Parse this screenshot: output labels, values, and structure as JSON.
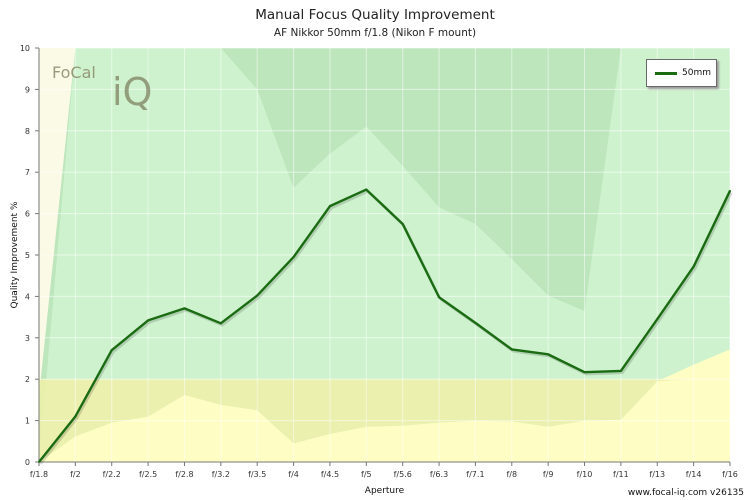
{
  "chart_data": {
    "type": "line",
    "title": "Manual Focus Quality Improvement",
    "subtitle": "AF Nikkor 50mm f/1.8 (Nikon F mount)",
    "xlabel": "Aperture",
    "ylabel": "Quality Improvement %",
    "categories": [
      "f/1.8",
      "f/2",
      "f/2.2",
      "f/2.5",
      "f/2.8",
      "f/3.2",
      "f/3.5",
      "f/4",
      "f/4.5",
      "f/5",
      "f/5.6",
      "f/6.3",
      "f/7.1",
      "f/8",
      "f/9",
      "f/10",
      "f/11",
      "f/13",
      "f/14",
      "f/16"
    ],
    "yticks": [
      0,
      1,
      2,
      3,
      4,
      5,
      6,
      7,
      8,
      9,
      10
    ],
    "ylim": [
      0,
      10
    ],
    "grid": true,
    "legend_position": "top-right",
    "series": [
      {
        "name": "50mm",
        "color": "#1a6b12",
        "values": [
          0,
          1.1,
          2.7,
          3.42,
          3.71,
          3.35,
          4.02,
          4.95,
          6.18,
          6.58,
          5.75,
          3.98,
          3.36,
          2.72,
          2.6,
          2.17,
          2.2,
          3.45,
          4.72,
          6.55
        ]
      }
    ],
    "bands": {
      "outer_upper": [
        1.6,
        10,
        10,
        10,
        10,
        10,
        10,
        10,
        10,
        10,
        10,
        10,
        10,
        10,
        10,
        10,
        10,
        10,
        10,
        10
      ],
      "inner_upper": [
        0,
        10,
        10,
        10,
        10,
        10,
        9.0,
        6.62,
        7.45,
        8.1,
        7.15,
        6.15,
        5.75,
        4.9,
        4.02,
        3.65,
        10,
        10,
        10,
        10
      ],
      "lower": [
        0,
        0.62,
        0.95,
        1.1,
        1.62,
        1.38,
        1.25,
        0.45,
        0.68,
        0.85,
        0.88,
        0.95,
        1.0,
        0.98,
        0.85,
        1.0,
        1.02,
        1.95,
        2.35,
        2.72
      ],
      "threshold": 2
    },
    "colors": {
      "outer_band": "#bde6bd",
      "inner_band": "#cef2ce",
      "lower_band": "#fefec4",
      "threshold_zone": "#f0f0a8",
      "plot_bg": "#fafae6"
    }
  },
  "watermark": "www.focal-iq.com  v26135",
  "logo": {
    "word": "FoCal",
    "mark": "iQ"
  }
}
